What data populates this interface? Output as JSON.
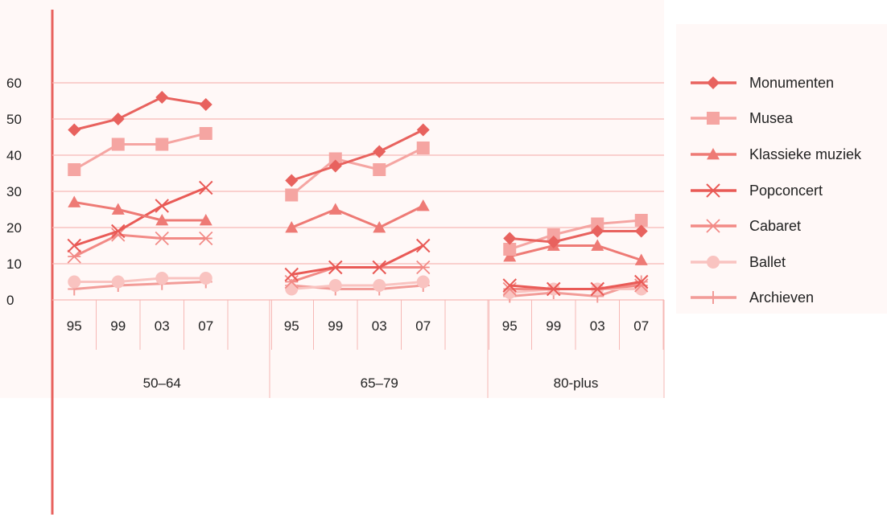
{
  "chart_data": {
    "type": "line",
    "title": "",
    "xlabel": "",
    "ylabel": "",
    "ylim": [
      0,
      60
    ],
    "yticks": [
      0,
      10,
      20,
      30,
      40,
      50,
      60
    ],
    "grid": true,
    "legend_position": "right",
    "groups": [
      {
        "label": "50–64",
        "years": [
          "95",
          "99",
          "03",
          "07"
        ]
      },
      {
        "label": "65–79",
        "years": [
          "95",
          "99",
          "03",
          "07"
        ]
      },
      {
        "label": "80-plus",
        "years": [
          "95",
          "99",
          "03",
          "07"
        ]
      }
    ],
    "series": [
      {
        "name": "Monumenten",
        "color": "#e8625e",
        "marker": "diamond",
        "values": [
          [
            47,
            50,
            56,
            54
          ],
          [
            33,
            37,
            41,
            47
          ],
          [
            17,
            16,
            19,
            19
          ]
        ]
      },
      {
        "name": "Musea",
        "color": "#f5a5a2",
        "marker": "square",
        "values": [
          [
            36,
            43,
            43,
            46
          ],
          [
            29,
            39,
            36,
            42
          ],
          [
            14,
            18,
            21,
            22
          ]
        ]
      },
      {
        "name": "Klassieke muziek",
        "color": "#ee7a75",
        "marker": "triangle",
        "values": [
          [
            27,
            25,
            22,
            22
          ],
          [
            20,
            25,
            20,
            26
          ],
          [
            12,
            15,
            15,
            11
          ]
        ]
      },
      {
        "name": "Popconcert",
        "color": "#e95a56",
        "marker": "x",
        "values": [
          [
            15,
            19,
            26,
            31
          ],
          [
            7,
            9,
            9,
            15
          ],
          [
            4,
            3,
            3,
            5
          ]
        ]
      },
      {
        "name": "Cabaret",
        "color": "#f28a86",
        "marker": "asterisk",
        "values": [
          [
            12,
            18,
            17,
            17
          ],
          [
            5,
            9,
            9,
            9
          ],
          [
            3,
            3,
            3,
            4
          ]
        ]
      },
      {
        "name": "Ballet",
        "color": "#f9c3c0",
        "marker": "circle",
        "values": [
          [
            5,
            5,
            6,
            6
          ],
          [
            3,
            4,
            4,
            5
          ],
          [
            2,
            3,
            3,
            3
          ]
        ]
      },
      {
        "name": "Archieven",
        "color": "#f29c98",
        "marker": "plus",
        "values": [
          [
            3,
            4,
            4.5,
            5
          ],
          [
            4,
            3,
            3,
            4
          ],
          [
            1,
            2,
            1,
            5
          ]
        ]
      }
    ]
  }
}
